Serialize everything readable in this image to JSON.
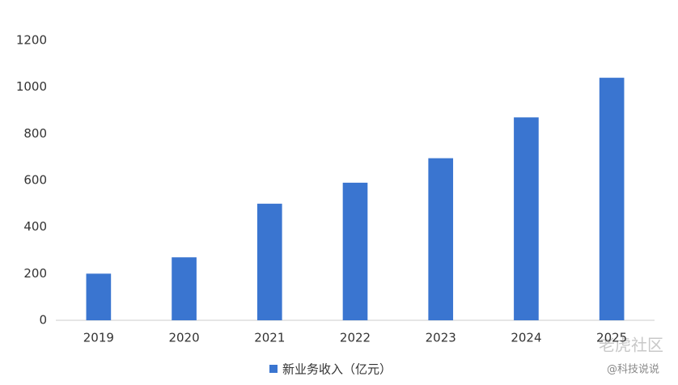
{
  "chart_data": {
    "type": "bar",
    "categories": [
      "2019",
      "2020",
      "2021",
      "2022",
      "2023",
      "2024",
      "2025"
    ],
    "series": [
      {
        "name": "新业务收入（亿元）",
        "color": "#3a75d0",
        "values": [
          200,
          270,
          500,
          590,
          695,
          870,
          1040
        ]
      }
    ],
    "ylim": [
      0,
      1200
    ],
    "yticks": [
      0,
      200,
      400,
      600,
      800,
      1000,
      1200
    ],
    "grid": false,
    "legend": "bottom"
  },
  "watermark": {
    "brand": "老虎社区",
    "author": "@科技说说"
  }
}
